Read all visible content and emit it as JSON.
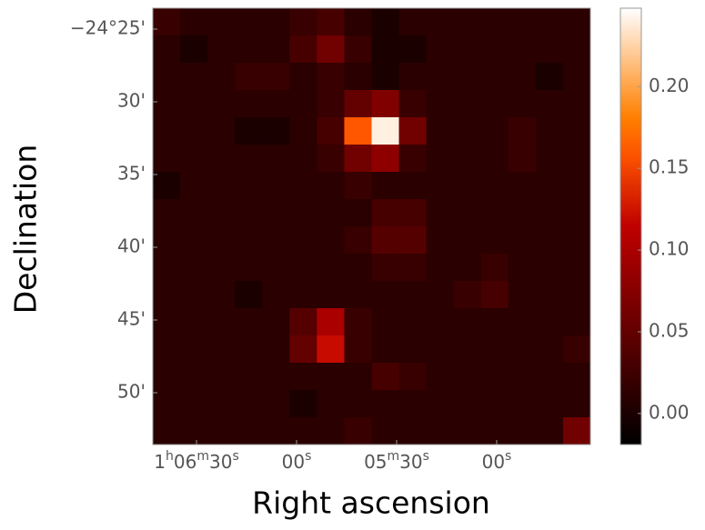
{
  "chart_data": {
    "type": "heatmap",
    "colormap": "gist_heat",
    "xlabel": "Right ascension",
    "ylabel": "Declination",
    "xlim": [
      4003.1,
      3871.9
    ],
    "xticks": [
      {
        "value": 3990,
        "label": "1h06m30s"
      },
      {
        "value": 3960,
        "label": "00s"
      },
      {
        "value": 3930,
        "label": "05m30s"
      },
      {
        "value": 3900,
        "label": "00s"
      }
    ],
    "ylim": [
      -24.8927,
      -24.3927
    ],
    "yticks": [
      {
        "value": -24.41667,
        "label": "−24°25'"
      },
      {
        "value": -24.5,
        "label": "30'"
      },
      {
        "value": -24.58333,
        "label": "35'"
      },
      {
        "value": -24.66667,
        "label": "40'"
      },
      {
        "value": -24.75,
        "label": "45'"
      },
      {
        "value": -24.83333,
        "label": "50'"
      }
    ],
    "clim": [
      -0.019,
      0.248
    ],
    "cticks": [
      {
        "value": 0,
        "label": "0.00"
      },
      {
        "value": 0.05,
        "label": "0.05"
      },
      {
        "value": 0.1,
        "label": "0.10"
      },
      {
        "value": 0.15,
        "label": "0.15"
      },
      {
        "value": 0.2,
        "label": "0.20"
      }
    ],
    "z": [
      [
        0.02,
        0.01,
        0.01,
        0.01,
        0.01,
        0.02,
        0.03,
        0.01,
        0.0,
        0.01,
        0.01,
        0.01,
        0.01,
        0.01,
        0.01,
        0.01
      ],
      [
        0.01,
        0.0,
        0.01,
        0.01,
        0.01,
        0.03,
        0.06,
        0.02,
        0.0,
        0.0,
        0.01,
        0.01,
        0.01,
        0.01,
        0.01,
        0.01
      ],
      [
        0.01,
        0.01,
        0.01,
        0.02,
        0.02,
        0.01,
        0.02,
        0.01,
        0.0,
        0.01,
        0.01,
        0.01,
        0.01,
        0.01,
        0.0,
        0.01
      ],
      [
        0.01,
        0.01,
        0.01,
        0.01,
        0.01,
        0.01,
        0.02,
        0.05,
        0.07,
        0.02,
        0.01,
        0.01,
        0.01,
        0.01,
        0.01,
        0.01
      ],
      [
        0.01,
        0.01,
        0.01,
        0.0,
        0.0,
        0.01,
        0.03,
        0.16,
        0.24,
        0.06,
        0.01,
        0.01,
        0.01,
        0.02,
        0.01,
        0.01
      ],
      [
        0.01,
        0.01,
        0.01,
        0.01,
        0.01,
        0.01,
        0.02,
        0.06,
        0.08,
        0.02,
        0.01,
        0.01,
        0.01,
        0.02,
        0.01,
        0.01
      ],
      [
        0.0,
        0.01,
        0.01,
        0.01,
        0.01,
        0.01,
        0.01,
        0.02,
        0.01,
        0.01,
        0.01,
        0.01,
        0.01,
        0.01,
        0.01,
        0.01
      ],
      [
        0.01,
        0.01,
        0.01,
        0.01,
        0.01,
        0.01,
        0.01,
        0.01,
        0.03,
        0.03,
        0.01,
        0.01,
        0.01,
        0.01,
        0.01,
        0.01
      ],
      [
        0.01,
        0.01,
        0.01,
        0.01,
        0.01,
        0.01,
        0.01,
        0.02,
        0.04,
        0.04,
        0.01,
        0.01,
        0.01,
        0.01,
        0.01,
        0.01
      ],
      [
        0.01,
        0.01,
        0.01,
        0.01,
        0.01,
        0.01,
        0.01,
        0.01,
        0.02,
        0.02,
        0.01,
        0.01,
        0.02,
        0.01,
        0.01,
        0.01
      ],
      [
        0.01,
        0.01,
        0.01,
        0.0,
        0.01,
        0.01,
        0.01,
        0.01,
        0.01,
        0.01,
        0.01,
        0.02,
        0.03,
        0.01,
        0.01,
        0.01
      ],
      [
        0.01,
        0.01,
        0.01,
        0.01,
        0.01,
        0.04,
        0.1,
        0.02,
        0.01,
        0.01,
        0.01,
        0.01,
        0.01,
        0.01,
        0.01,
        0.01
      ],
      [
        0.01,
        0.01,
        0.01,
        0.01,
        0.01,
        0.05,
        0.12,
        0.02,
        0.01,
        0.01,
        0.01,
        0.01,
        0.01,
        0.01,
        0.01,
        0.02
      ],
      [
        0.01,
        0.01,
        0.01,
        0.01,
        0.01,
        0.01,
        0.01,
        0.01,
        0.03,
        0.02,
        0.01,
        0.01,
        0.01,
        0.01,
        0.01,
        0.01
      ],
      [
        0.01,
        0.01,
        0.01,
        0.01,
        0.01,
        0.0,
        0.01,
        0.01,
        0.01,
        0.01,
        0.01,
        0.01,
        0.01,
        0.01,
        0.01,
        0.01
      ],
      [
        0.01,
        0.01,
        0.01,
        0.01,
        0.01,
        0.01,
        0.01,
        0.02,
        0.01,
        0.01,
        0.01,
        0.01,
        0.01,
        0.01,
        0.01,
        0.06
      ]
    ]
  }
}
